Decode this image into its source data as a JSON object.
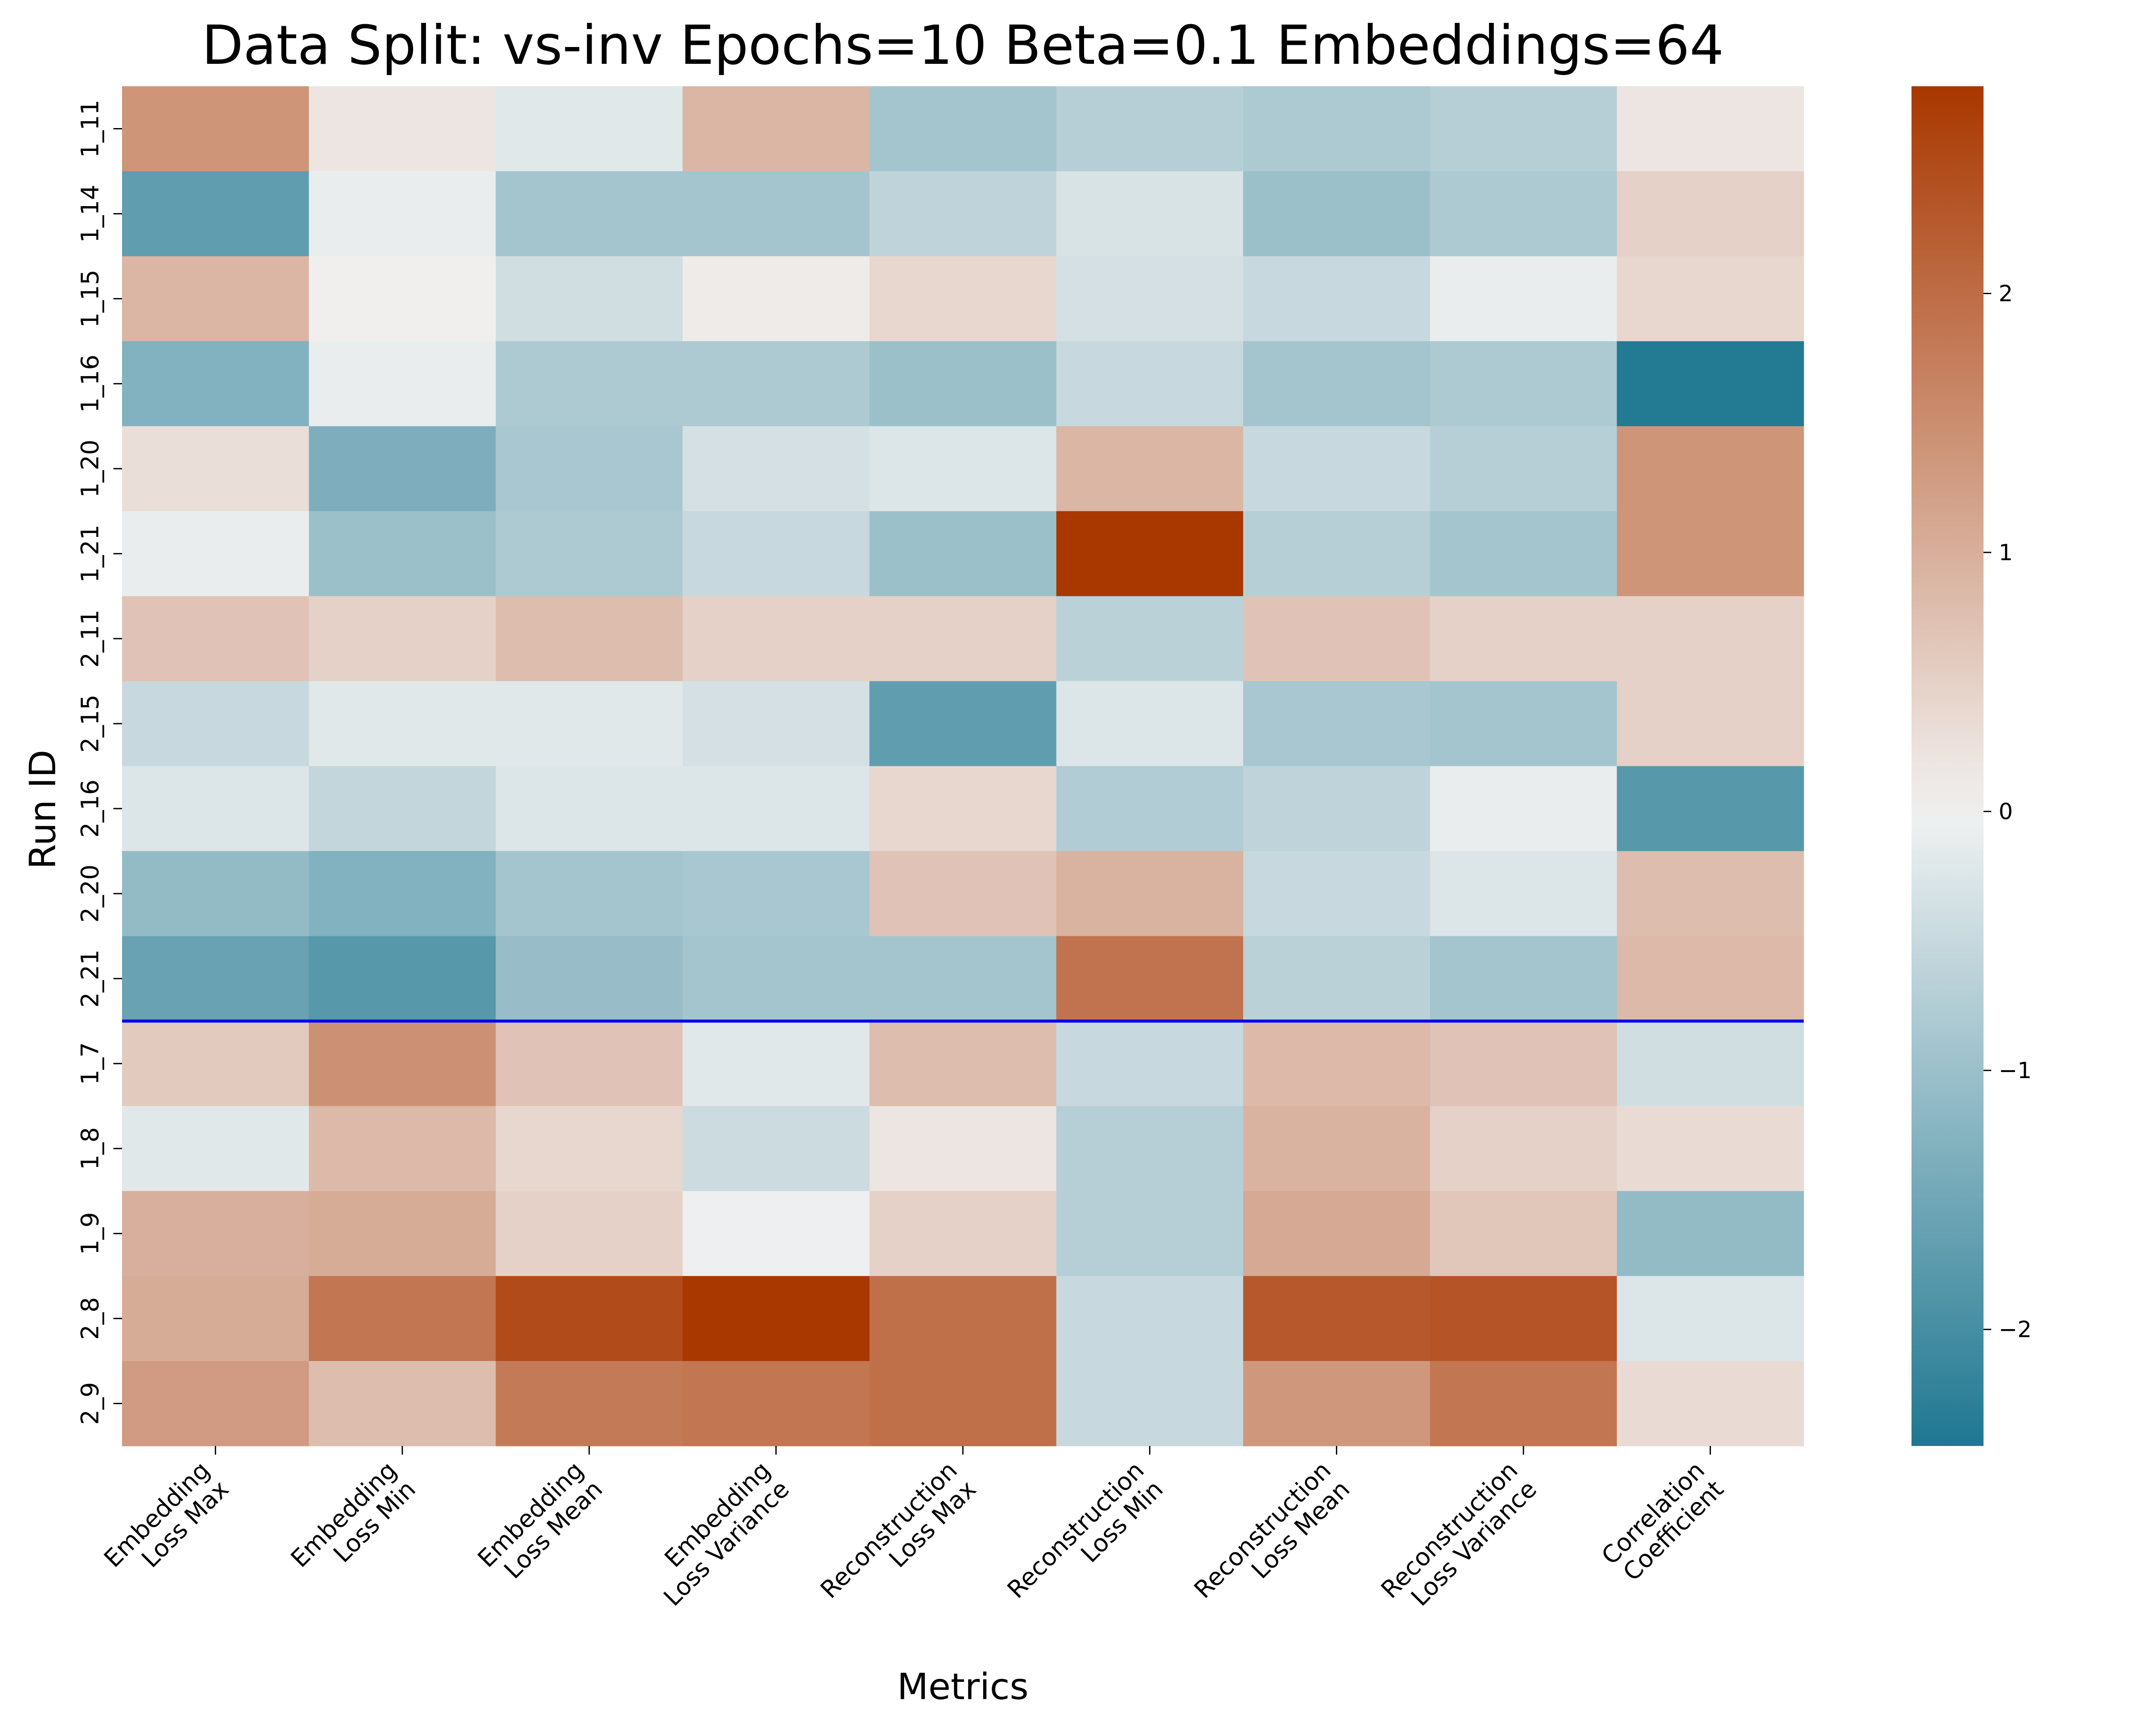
{
  "chart_data": {
    "type": "heatmap",
    "title": "Data Split: vs-inv Epochs=10 Beta=0.1 Embeddings=64",
    "xlabel": "Metrics",
    "ylabel": "Run ID",
    "x_categories": [
      [
        "Embedding",
        "Loss Max"
      ],
      [
        "Embedding",
        "Loss Min"
      ],
      [
        "Embedding",
        "Loss Mean"
      ],
      [
        "Embedding",
        "Loss Variance"
      ],
      [
        "Reconstruction",
        "Loss Max"
      ],
      [
        "Reconstruction",
        "Loss Min"
      ],
      [
        "Reconstruction",
        "Loss Mean"
      ],
      [
        "Reconstruction",
        "Loss Variance"
      ],
      [
        "Correlation",
        "Coefficient"
      ]
    ],
    "y_categories": [
      "1_11",
      "1_14",
      "1_15",
      "1_16",
      "1_20",
      "1_21",
      "2_11",
      "2_15",
      "2_16",
      "2_20",
      "2_21",
      "1_7",
      "1_8",
      "1_9",
      "2_8",
      "2_9"
    ],
    "values": [
      [
        1.4,
        0.2,
        -0.2,
        0.9,
        -0.9,
        -0.7,
        -0.8,
        -0.7,
        0.2
      ],
      [
        -1.7,
        -0.1,
        -0.9,
        -0.9,
        -0.6,
        -0.3,
        -1.0,
        -0.8,
        0.5
      ],
      [
        0.9,
        0.05,
        -0.4,
        0.1,
        0.4,
        -0.35,
        -0.5,
        -0.1,
        0.4
      ],
      [
        -1.3,
        -0.1,
        -0.8,
        -0.8,
        -1.0,
        -0.5,
        -0.9,
        -0.8,
        -2.4
      ],
      [
        0.3,
        -1.35,
        -0.85,
        -0.35,
        -0.25,
        0.9,
        -0.5,
        -0.7,
        1.4
      ],
      [
        -0.1,
        -1.0,
        -0.8,
        -0.5,
        -1.0,
        2.8,
        -0.7,
        -0.9,
        1.4
      ],
      [
        0.7,
        0.5,
        0.8,
        0.5,
        0.5,
        -0.65,
        0.7,
        0.5,
        0.5
      ],
      [
        -0.5,
        -0.2,
        -0.2,
        -0.35,
        -1.7,
        -0.25,
        -0.85,
        -0.9,
        0.5
      ],
      [
        -0.25,
        -0.55,
        -0.25,
        -0.25,
        0.4,
        -0.75,
        -0.6,
        -0.1,
        -1.8
      ],
      [
        -1.1,
        -1.3,
        -0.9,
        -0.85,
        0.7,
        0.95,
        -0.5,
        -0.25,
        0.8
      ],
      [
        -1.6,
        -1.8,
        -1.05,
        -0.9,
        -0.9,
        1.9,
        -0.65,
        -0.9,
        0.85
      ],
      [
        0.6,
        1.45,
        0.7,
        -0.2,
        0.8,
        -0.5,
        0.85,
        0.7,
        -0.4
      ],
      [
        -0.2,
        0.85,
        0.4,
        -0.45,
        0.2,
        -0.7,
        0.95,
        0.5,
        0.35
      ],
      [
        1.0,
        1.05,
        0.5,
        -0.05,
        0.5,
        -0.7,
        1.1,
        0.65,
        -1.1
      ],
      [
        1.05,
        1.85,
        2.5,
        2.8,
        1.95,
        -0.5,
        2.3,
        2.35,
        -0.25
      ],
      [
        1.3,
        0.8,
        1.8,
        1.85,
        1.95,
        -0.5,
        1.35,
        1.85,
        0.35
      ]
    ],
    "vmin": -2.45,
    "vmax": 2.8,
    "colorbar_ticks": [
      "−2",
      "−1",
      "0",
      "1",
      "2"
    ],
    "colorbar_tick_values": [
      -2,
      -1,
      0,
      1,
      2
    ],
    "separator_after_row": "2_21",
    "separator_color": "#0000ee",
    "colormap": {
      "low": "#1f7791",
      "mid": "#f2f2f2",
      "high": "#a93700"
    }
  }
}
